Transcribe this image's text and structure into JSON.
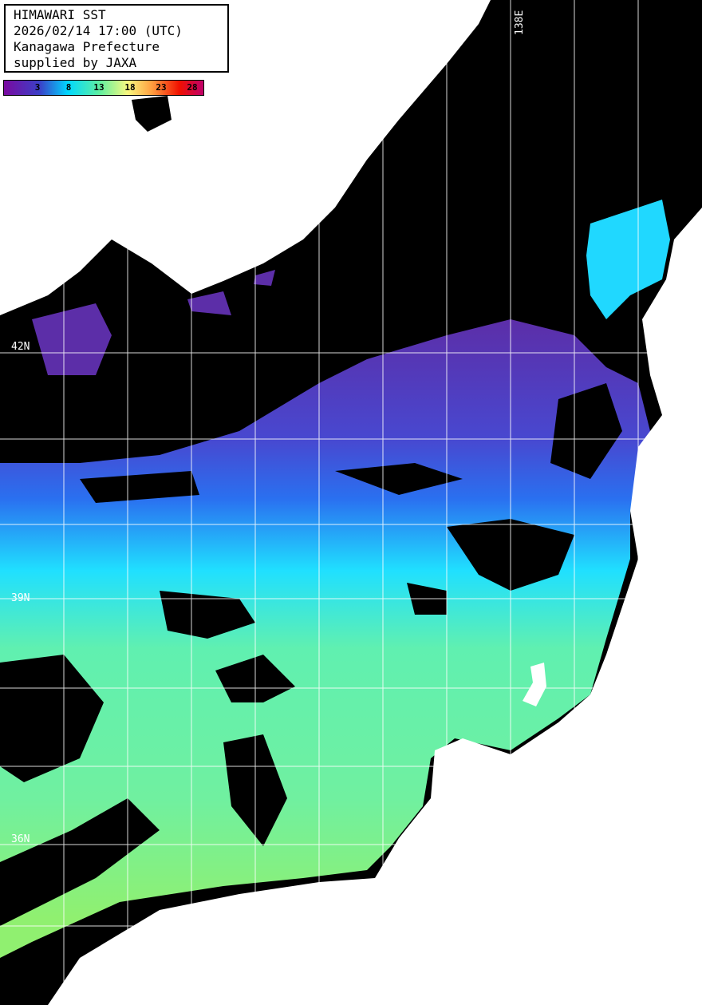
{
  "title_box": {
    "lines": [
      "HIMAWARI SST",
      "2026/02/14 17:00 (UTC)",
      "Kanagawa Prefecture",
      "supplied by JAXA"
    ]
  },
  "colorbar": {
    "ticks": [
      "3",
      "8",
      "13",
      "18",
      "23",
      "28"
    ],
    "colors": [
      "#7a0aa0",
      "#3a40c8",
      "#00d8ff",
      "#60f0a0",
      "#f8f880",
      "#ffa040",
      "#f01000",
      "#c0006a"
    ]
  },
  "grid": {
    "lat_labels": [
      "42N",
      "39N",
      "36N"
    ],
    "lon_labels": [
      "138E"
    ]
  },
  "colors": {
    "land": "#ffffff",
    "no_data": "#000000",
    "grid": "#ffffff"
  }
}
